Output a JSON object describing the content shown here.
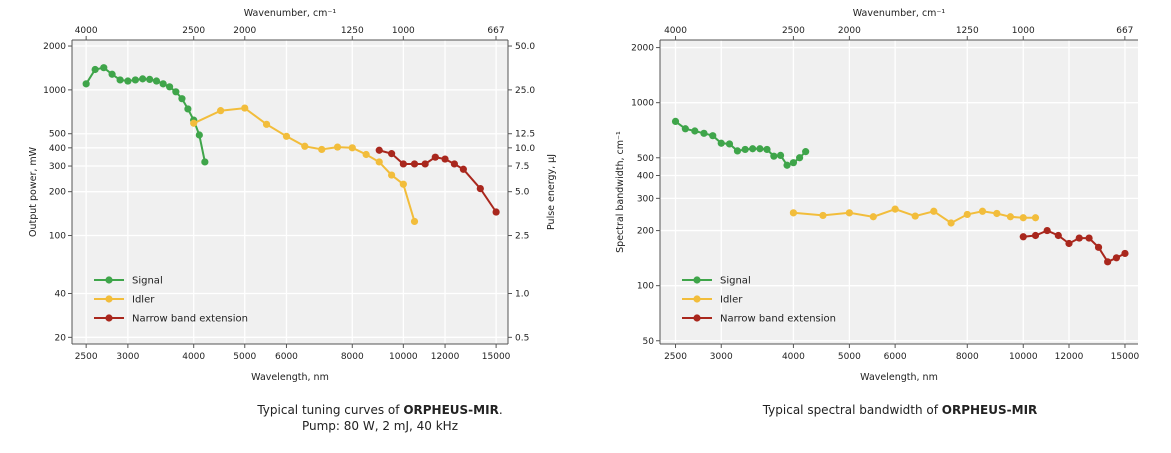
{
  "colors": {
    "signal": "#3fa54a",
    "idler": "#f2bd3b",
    "narrow": "#a9271d",
    "plot_bg": "#f0f0f0",
    "grid": "#ffffff"
  },
  "captions": {
    "left_prefix": "Typical tuning curves of ",
    "left_bold": "ORPHEUS-MIR",
    "left_suffix": ".",
    "left_line2": "Pump: 80 W, 2 mJ, 40 kHz",
    "right_prefix": "Typical spectral bandwidth of ",
    "right_bold": "ORPHEUS-MIR"
  },
  "chart_data": [
    {
      "type": "line",
      "x_scale": "log",
      "y_scale": "log",
      "xlabel": "Wavelength, nm",
      "ylabel": "Output power, mW",
      "y2label": "Pulse energy, µJ",
      "top_axis_label": "Wavenumber, cm⁻¹",
      "xlim": [
        2350,
        15800
      ],
      "ylim": [
        18,
        2200
      ],
      "grid": true,
      "legend": "bottom-left",
      "x_ticks": [
        2500,
        3000,
        4000,
        5000,
        6000,
        8000,
        10000,
        12000,
        15000
      ],
      "x_tick_labels": [
        "2500",
        "3000",
        "4000",
        "5000",
        "6000",
        "8000",
        "10000",
        "12000",
        "15000"
      ],
      "top_ticks": [
        4000,
        2500,
        2000,
        1250,
        1000,
        667
      ],
      "top_tick_labels": [
        "4000",
        "2500",
        "2000",
        "1250",
        "1000",
        "667"
      ],
      "y_ticks": [
        20,
        40,
        100,
        200,
        300,
        400,
        500,
        1000,
        2000
      ],
      "y_tick_labels": [
        "20",
        "40",
        "100",
        "200",
        "300",
        "400",
        "500",
        "1000",
        "2000"
      ],
      "y2_ticks": [
        0.5,
        1.0,
        2.5,
        5.0,
        7.5,
        10.0,
        12.5,
        25.0,
        50.0
      ],
      "y2_tick_labels": [
        "0.5",
        "1.0",
        "2.5",
        "5.0",
        "7.5",
        "10.0",
        "12.5",
        "25.0",
        "50.0"
      ],
      "series": [
        {
          "name": "Signal",
          "color_key": "signal",
          "points": [
            [
              2500,
              1100
            ],
            [
              2600,
              1380
            ],
            [
              2700,
              1420
            ],
            [
              2800,
              1280
            ],
            [
              2900,
              1170
            ],
            [
              3000,
              1150
            ],
            [
              3100,
              1170
            ],
            [
              3200,
              1190
            ],
            [
              3300,
              1180
            ],
            [
              3400,
              1150
            ],
            [
              3500,
              1100
            ],
            [
              3600,
              1050
            ],
            [
              3700,
              970
            ],
            [
              3800,
              870
            ],
            [
              3900,
              740
            ],
            [
              4000,
              620
            ],
            [
              4100,
              490
            ],
            [
              4200,
              320
            ]
          ]
        },
        {
          "name": "Idler",
          "color_key": "idler",
          "points": [
            [
              4000,
              590
            ],
            [
              4500,
              720
            ],
            [
              5000,
              750
            ],
            [
              5500,
              580
            ],
            [
              6000,
              480
            ],
            [
              6500,
              410
            ],
            [
              7000,
              390
            ],
            [
              7500,
              405
            ],
            [
              8000,
              400
            ],
            [
              8500,
              360
            ],
            [
              9000,
              320
            ],
            [
              9500,
              260
            ],
            [
              10000,
              225
            ],
            [
              10500,
              125
            ]
          ]
        },
        {
          "name": "Narrow band extension",
          "color_key": "narrow",
          "points": [
            [
              9000,
              385
            ],
            [
              9500,
              365
            ],
            [
              10000,
              310
            ],
            [
              10500,
              310
            ],
            [
              11000,
              310
            ],
            [
              11500,
              345
            ],
            [
              12000,
              335
            ],
            [
              12500,
              310
            ],
            [
              13000,
              285
            ],
            [
              14000,
              210
            ],
            [
              15000,
              145
            ]
          ]
        }
      ]
    },
    {
      "type": "line",
      "x_scale": "log",
      "y_scale": "log",
      "xlabel": "Wavelength, nm",
      "ylabel": "Spectral bandwidth, cm⁻¹",
      "top_axis_label": "Wavenumber, cm⁻¹",
      "xlim": [
        2350,
        15800
      ],
      "ylim": [
        48,
        2200
      ],
      "grid": true,
      "legend": "bottom-left",
      "x_ticks": [
        2500,
        3000,
        4000,
        5000,
        6000,
        8000,
        10000,
        12000,
        15000
      ],
      "x_tick_labels": [
        "2500",
        "3000",
        "4000",
        "5000",
        "6000",
        "8000",
        "10000",
        "12000",
        "15000"
      ],
      "top_ticks": [
        4000,
        2500,
        2000,
        1250,
        1000,
        667
      ],
      "top_tick_labels": [
        "4000",
        "2500",
        "2000",
        "1250",
        "1000",
        "667"
      ],
      "y_ticks": [
        50,
        100,
        200,
        300,
        400,
        500,
        1000,
        2000
      ],
      "y_tick_labels": [
        "50",
        "100",
        "200",
        "300",
        "400",
        "500",
        "1000",
        "2000"
      ],
      "series": [
        {
          "name": "Signal",
          "color_key": "signal",
          "points": [
            [
              2500,
              790
            ],
            [
              2600,
              720
            ],
            [
              2700,
              700
            ],
            [
              2800,
              680
            ],
            [
              2900,
              660
            ],
            [
              3000,
              600
            ],
            [
              3100,
              595
            ],
            [
              3200,
              545
            ],
            [
              3300,
              555
            ],
            [
              3400,
              560
            ],
            [
              3500,
              560
            ],
            [
              3600,
              555
            ],
            [
              3700,
              510
            ],
            [
              3800,
              515
            ],
            [
              3900,
              455
            ],
            [
              4000,
              470
            ],
            [
              4100,
              500
            ],
            [
              4200,
              540
            ]
          ]
        },
        {
          "name": "Idler",
          "color_key": "idler",
          "points": [
            [
              4000,
              250
            ],
            [
              4500,
              242
            ],
            [
              5000,
              250
            ],
            [
              5500,
              238
            ],
            [
              6000,
              262
            ],
            [
              6500,
              240
            ],
            [
              7000,
              255
            ],
            [
              7500,
              220
            ],
            [
              8000,
              245
            ],
            [
              8500,
              255
            ],
            [
              9000,
              248
            ],
            [
              9500,
              238
            ],
            [
              10000,
              235
            ],
            [
              10500,
              235
            ]
          ]
        },
        {
          "name": "Narrow band extension",
          "color_key": "narrow",
          "points": [
            [
              10000,
              185
            ],
            [
              10500,
              188
            ],
            [
              11000,
              200
            ],
            [
              11500,
              188
            ],
            [
              12000,
              170
            ],
            [
              12500,
              182
            ],
            [
              13000,
              182
            ],
            [
              13500,
              162
            ],
            [
              14000,
              135
            ],
            [
              14500,
              142
            ],
            [
              15000,
              150
            ]
          ]
        }
      ]
    }
  ]
}
